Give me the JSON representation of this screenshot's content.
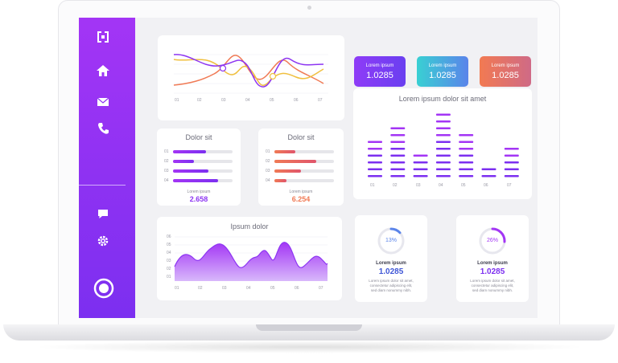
{
  "colors": {
    "purple": "#a335f5",
    "violet": "#7c2ff0",
    "teal": "#2ec5d3",
    "orange": "#f07a55"
  },
  "sidebar": {
    "icons": [
      {
        "name": "logo-icon"
      },
      {
        "name": "home-icon"
      },
      {
        "name": "mail-icon"
      },
      {
        "name": "phone-icon"
      },
      {
        "name": "chat-icon"
      },
      {
        "name": "settings-icon"
      },
      {
        "name": "record-icon"
      }
    ]
  },
  "line_card": {
    "x_labels": [
      "01",
      "02",
      "03",
      "04",
      "05",
      "06",
      "07"
    ]
  },
  "stats": [
    {
      "label": "Lorem ipsum",
      "value": "1.0285",
      "color_from": "#8e3cf7",
      "color_to": "#6a3ff0"
    },
    {
      "label": "Lorem ipsum",
      "value": "1.0285",
      "color_from": "#39d0d3",
      "color_to": "#5a84ea"
    },
    {
      "label": "Lorem ipsum",
      "value": "1.0285",
      "color_from": "#f27a52",
      "color_to": "#cf6a86"
    }
  ],
  "bars_card": {
    "title": "Lorem ipsum dolor sit amet",
    "x_labels": [
      "01",
      "02",
      "03",
      "04",
      "05",
      "06",
      "07"
    ],
    "levels": [
      6,
      8,
      4,
      10,
      7,
      2,
      5
    ]
  },
  "dolor_left": {
    "title": "Dolor sit",
    "row_labels": [
      "01",
      "02",
      "03",
      "04"
    ],
    "fractions": [
      0.55,
      0.35,
      0.6,
      0.75
    ],
    "caption": "Lorem ipsum",
    "value": "2.658"
  },
  "dolor_right": {
    "title": "Dolor sit",
    "row_labels": [
      "01",
      "02",
      "03",
      "04"
    ],
    "fractions": [
      0.35,
      0.7,
      0.45,
      0.2
    ],
    "caption": "Lorem ipsum",
    "value": "6.254"
  },
  "area_card": {
    "title": "Ipsum dolor",
    "y_labels": [
      "06",
      "05",
      "04",
      "03",
      "02",
      "01"
    ],
    "x_labels": [
      "01",
      "02",
      "03",
      "04",
      "05",
      "06",
      "07"
    ]
  },
  "donut_left": {
    "percent_label": "13%",
    "percent": 0.13,
    "title": "Lorem ipsum",
    "value": "1.0285",
    "desc_lines": [
      "Lorem ipsum dolor sit amet,",
      "consectetur adipiscing elit,",
      "sed diam nonummy nibh."
    ]
  },
  "donut_right": {
    "percent_label": "26%",
    "percent": 0.26,
    "title": "Lorem ipsum",
    "value": "1.0285",
    "desc_lines": [
      "Lorem ipsum dolor sit amet,",
      "consectetur adipiscing elit,",
      "sed diam nonummy nibh."
    ]
  }
}
